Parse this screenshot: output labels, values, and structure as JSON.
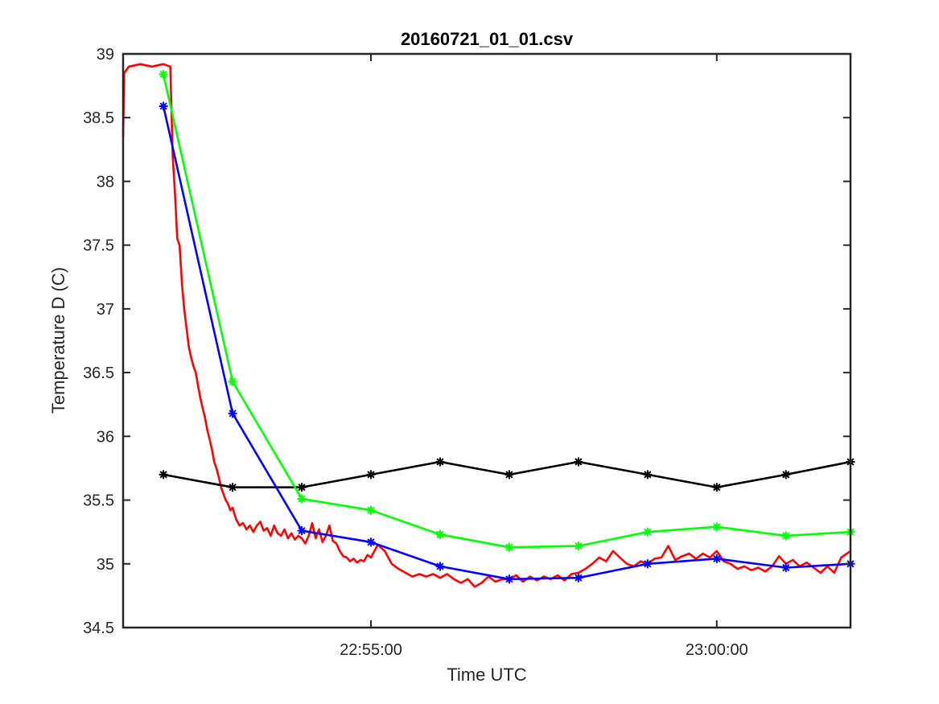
{
  "chart_data": {
    "type": "line",
    "title": "20160721_01_01.csv",
    "xlabel": "Time UTC",
    "ylabel": "Temperature D (C)",
    "xlim": [
      "22:51:25",
      "23:01:56"
    ],
    "ylim": [
      34.5,
      39
    ],
    "x_ticks": [
      "22:55:00",
      "23:00:00"
    ],
    "y_ticks": [
      34.5,
      35,
      35.5,
      36,
      36.5,
      37,
      37.5,
      38,
      38.5,
      39
    ],
    "grid": false,
    "legend": "none",
    "series": [
      {
        "color": "#ff0000",
        "marker": "none",
        "points": [
          [
            "22:51:25",
            38.35
          ],
          [
            "22:51:26",
            38.85
          ],
          [
            "22:51:30",
            38.9
          ],
          [
            "22:51:40",
            38.92
          ],
          [
            "22:51:50",
            38.9
          ],
          [
            "22:52:00",
            38.92
          ],
          [
            "22:52:06",
            38.9
          ],
          [
            "22:52:08",
            38.2
          ],
          [
            "22:52:10",
            37.9
          ],
          [
            "22:52:12",
            37.55
          ],
          [
            "22:52:14",
            37.5
          ],
          [
            "22:52:16",
            37.2
          ],
          [
            "22:52:18",
            37.0
          ],
          [
            "22:52:20",
            36.85
          ],
          [
            "22:52:22",
            36.7
          ],
          [
            "22:52:24",
            36.62
          ],
          [
            "22:52:26",
            36.55
          ],
          [
            "22:52:28",
            36.5
          ],
          [
            "22:52:30",
            36.4
          ],
          [
            "22:52:32",
            36.3
          ],
          [
            "22:52:34",
            36.22
          ],
          [
            "22:52:36",
            36.15
          ],
          [
            "22:52:38",
            36.05
          ],
          [
            "22:52:40",
            35.98
          ],
          [
            "22:52:42",
            35.9
          ],
          [
            "22:52:44",
            35.8
          ],
          [
            "22:52:46",
            35.75
          ],
          [
            "22:52:48",
            35.68
          ],
          [
            "22:52:50",
            35.6
          ],
          [
            "22:52:52",
            35.55
          ],
          [
            "22:52:54",
            35.5
          ],
          [
            "22:52:56",
            35.47
          ],
          [
            "22:52:58",
            35.42
          ],
          [
            "22:53:00",
            35.44
          ],
          [
            "22:53:03",
            35.35
          ],
          [
            "22:53:06",
            35.3
          ],
          [
            "22:53:09",
            35.32
          ],
          [
            "22:53:12",
            35.27
          ],
          [
            "22:53:15",
            35.3
          ],
          [
            "22:53:18",
            35.25
          ],
          [
            "22:53:21",
            35.3
          ],
          [
            "22:53:24",
            35.33
          ],
          [
            "22:53:27",
            35.26
          ],
          [
            "22:53:30",
            35.28
          ],
          [
            "22:53:33",
            35.22
          ],
          [
            "22:53:36",
            35.3
          ],
          [
            "22:53:39",
            35.24
          ],
          [
            "22:53:42",
            35.22
          ],
          [
            "22:53:45",
            35.27
          ],
          [
            "22:53:48",
            35.2
          ],
          [
            "22:53:51",
            35.24
          ],
          [
            "22:53:54",
            35.19
          ],
          [
            "22:53:57",
            35.22
          ],
          [
            "22:54:00",
            35.2
          ],
          [
            "22:54:03",
            35.16
          ],
          [
            "22:54:06",
            35.22
          ],
          [
            "22:54:09",
            35.32
          ],
          [
            "22:54:12",
            35.2
          ],
          [
            "22:54:15",
            35.27
          ],
          [
            "22:54:18",
            35.17
          ],
          [
            "22:54:21",
            35.22
          ],
          [
            "22:54:24",
            35.3
          ],
          [
            "22:54:27",
            35.18
          ],
          [
            "22:54:30",
            35.16
          ],
          [
            "22:54:33",
            35.1
          ],
          [
            "22:54:36",
            35.06
          ],
          [
            "22:54:39",
            35.05
          ],
          [
            "22:54:42",
            35.02
          ],
          [
            "22:54:45",
            35.04
          ],
          [
            "22:54:48",
            35.01
          ],
          [
            "22:54:51",
            35.03
          ],
          [
            "22:54:54",
            35.02
          ],
          [
            "22:54:57",
            35.07
          ],
          [
            "22:55:00",
            35.05
          ],
          [
            "22:55:06",
            35.15
          ],
          [
            "22:55:12",
            35.1
          ],
          [
            "22:55:18",
            35.0
          ],
          [
            "22:55:24",
            34.96
          ],
          [
            "22:55:30",
            34.93
          ],
          [
            "22:55:36",
            34.9
          ],
          [
            "22:55:42",
            34.92
          ],
          [
            "22:55:48",
            34.9
          ],
          [
            "22:55:54",
            34.92
          ],
          [
            "22:56:00",
            34.89
          ],
          [
            "22:56:06",
            34.92
          ],
          [
            "22:56:12",
            34.88
          ],
          [
            "22:56:18",
            34.85
          ],
          [
            "22:56:24",
            34.88
          ],
          [
            "22:56:30",
            34.82
          ],
          [
            "22:56:36",
            34.85
          ],
          [
            "22:56:42",
            34.9
          ],
          [
            "22:56:48",
            34.86
          ],
          [
            "22:56:54",
            34.88
          ],
          [
            "22:57:00",
            34.88
          ],
          [
            "22:57:06",
            34.91
          ],
          [
            "22:57:12",
            34.86
          ],
          [
            "22:57:18",
            34.9
          ],
          [
            "22:57:24",
            34.87
          ],
          [
            "22:57:30",
            34.9
          ],
          [
            "22:57:36",
            34.88
          ],
          [
            "22:57:42",
            34.91
          ],
          [
            "22:57:48",
            34.87
          ],
          [
            "22:57:54",
            34.92
          ],
          [
            "22:58:00",
            34.93
          ],
          [
            "22:58:06",
            34.96
          ],
          [
            "22:58:12",
            35.0
          ],
          [
            "22:58:18",
            35.05
          ],
          [
            "22:58:24",
            35.02
          ],
          [
            "22:58:30",
            35.1
          ],
          [
            "22:58:36",
            35.05
          ],
          [
            "22:58:42",
            35.0
          ],
          [
            "22:58:48",
            34.98
          ],
          [
            "22:58:54",
            35.02
          ],
          [
            "22:59:00",
            35.0
          ],
          [
            "22:59:06",
            35.04
          ],
          [
            "22:59:12",
            35.05
          ],
          [
            "22:59:18",
            35.14
          ],
          [
            "22:59:24",
            35.03
          ],
          [
            "22:59:30",
            35.06
          ],
          [
            "22:59:36",
            35.08
          ],
          [
            "22:59:42",
            35.04
          ],
          [
            "22:59:48",
            35.08
          ],
          [
            "22:59:54",
            35.05
          ],
          [
            "23:00:00",
            35.1
          ],
          [
            "23:00:06",
            35.02
          ],
          [
            "23:00:12",
            35.0
          ],
          [
            "23:00:18",
            34.96
          ],
          [
            "23:00:24",
            34.98
          ],
          [
            "23:00:30",
            34.95
          ],
          [
            "23:00:36",
            34.97
          ],
          [
            "23:00:42",
            34.94
          ],
          [
            "23:00:48",
            34.98
          ],
          [
            "23:00:54",
            35.06
          ],
          [
            "23:01:00",
            35.0
          ],
          [
            "23:01:06",
            35.03
          ],
          [
            "23:01:12",
            34.98
          ],
          [
            "23:01:18",
            35.01
          ],
          [
            "23:01:24",
            34.97
          ],
          [
            "23:01:30",
            34.93
          ],
          [
            "23:01:36",
            34.98
          ],
          [
            "23:01:42",
            34.93
          ],
          [
            "23:01:48",
            35.05
          ],
          [
            "23:01:56",
            35.1
          ]
        ]
      },
      {
        "color": "#000000",
        "marker": "*",
        "points": [
          [
            "22:52:00",
            35.7
          ],
          [
            "22:53:00",
            35.6
          ],
          [
            "22:54:00",
            35.6
          ],
          [
            "22:55:00",
            35.7
          ],
          [
            "22:56:00",
            35.8
          ],
          [
            "22:57:00",
            35.7
          ],
          [
            "22:58:00",
            35.8
          ],
          [
            "22:59:00",
            35.7
          ],
          [
            "23:00:00",
            35.6
          ],
          [
            "23:01:00",
            35.7
          ],
          [
            "23:01:56",
            35.8
          ]
        ]
      },
      {
        "color": "#00ff00",
        "marker": "*",
        "points": [
          [
            "22:52:00",
            38.84
          ],
          [
            "22:53:00",
            36.43
          ],
          [
            "22:54:00",
            35.51
          ],
          [
            "22:55:00",
            35.42
          ],
          [
            "22:56:00",
            35.23
          ],
          [
            "22:57:00",
            35.13
          ],
          [
            "22:58:00",
            35.14
          ],
          [
            "22:59:00",
            35.25
          ],
          [
            "23:00:00",
            35.29
          ],
          [
            "23:01:00",
            35.22
          ],
          [
            "23:01:56",
            35.25
          ]
        ]
      },
      {
        "color": "#0000ff",
        "marker": "*",
        "points": [
          [
            "22:52:00",
            38.59
          ],
          [
            "22:53:00",
            36.18
          ],
          [
            "22:54:00",
            35.26
          ],
          [
            "22:55:00",
            35.17
          ],
          [
            "22:56:00",
            34.98
          ],
          [
            "22:57:00",
            34.88
          ],
          [
            "22:58:00",
            34.89
          ],
          [
            "22:59:00",
            35.0
          ],
          [
            "23:00:00",
            35.04
          ],
          [
            "23:01:00",
            34.97
          ],
          [
            "23:01:56",
            35.0
          ]
        ]
      }
    ]
  }
}
